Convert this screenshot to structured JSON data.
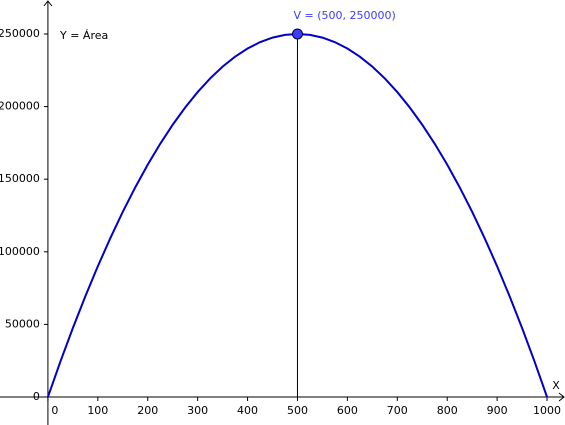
{
  "chart_data": {
    "type": "line",
    "annotation": "Y = Área",
    "xlabel": "X",
    "x": [
      0,
      25,
      50,
      75,
      100,
      125,
      150,
      175,
      200,
      225,
      250,
      275,
      300,
      325,
      350,
      375,
      400,
      425,
      450,
      475,
      500,
      525,
      550,
      575,
      600,
      625,
      650,
      675,
      700,
      725,
      750,
      775,
      800,
      825,
      850,
      875,
      900,
      925,
      950,
      975,
      1000
    ],
    "values": [
      0,
      24375,
      47500,
      69375,
      90000,
      109375,
      127500,
      144375,
      160000,
      174375,
      187500,
      199375,
      210000,
      219375,
      227500,
      234375,
      240000,
      244375,
      247500,
      249375,
      250000,
      249375,
      247500,
      244375,
      240000,
      234375,
      227500,
      219375,
      210000,
      199375,
      187500,
      174375,
      160000,
      144375,
      127500,
      109375,
      90000,
      69375,
      47500,
      24375,
      0
    ],
    "color": "#0000c8",
    "point": {
      "label": "V = (500, 250000)",
      "x": 500,
      "y": 250000,
      "color": "#3c3cff"
    },
    "xlim": [
      -96,
      1036
    ],
    "ylim": [
      -19300,
      273400
    ],
    "xticks": [
      0,
      100,
      200,
      300,
      400,
      500,
      600,
      700,
      800,
      900,
      1000
    ],
    "yticks": [
      0,
      50000,
      100000,
      150000,
      200000,
      250000
    ]
  }
}
